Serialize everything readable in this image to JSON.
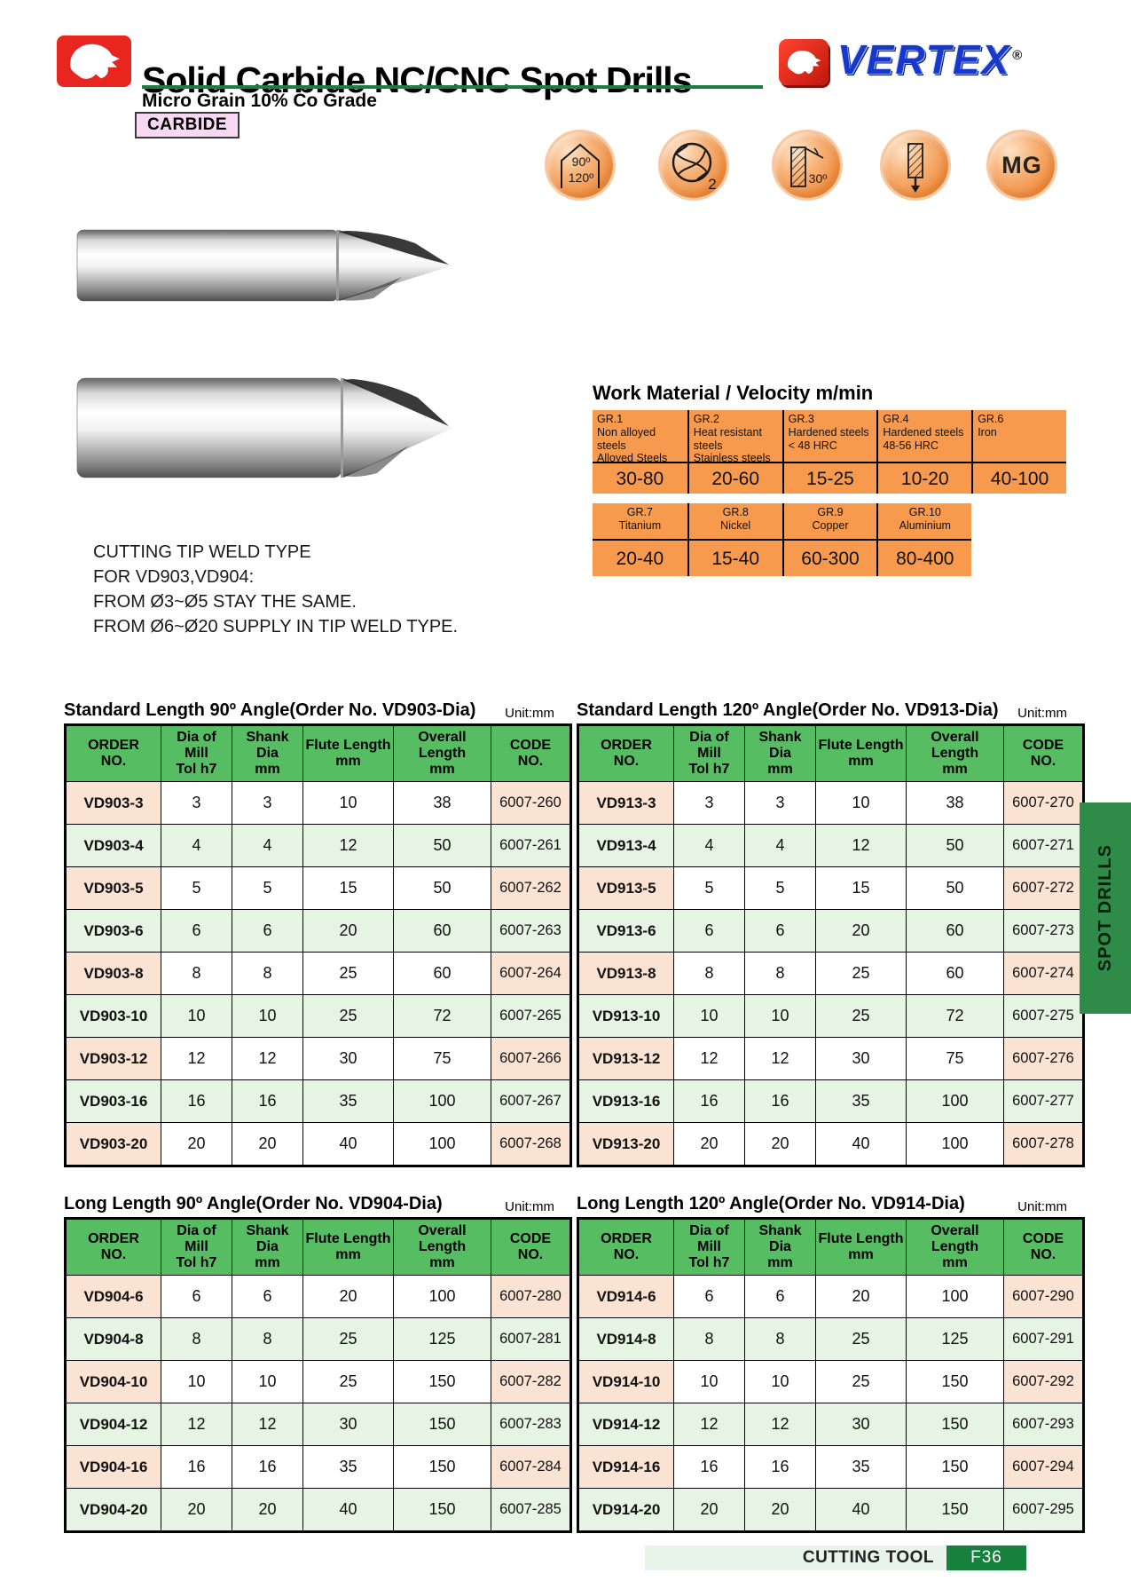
{
  "header": {
    "title": "Solid Carbide NC/CNC Spot Drills",
    "subtitle": "Micro Grain 10% Co Grade",
    "grade_badge": "CARBIDE",
    "brand": "VERTEX",
    "registered_mark": "®"
  },
  "feature_icons": {
    "point_angle": {
      "top": "90º",
      "bottom": "120º"
    },
    "flutes": {
      "count": "2"
    },
    "helix": {
      "angle": "30º"
    },
    "mg": {
      "label": "MG"
    }
  },
  "note_lines": [
    "CUTTING TIP WELD TYPE",
    "FOR VD903,VD904:",
    "FROM Ø3~Ø5 STAY THE SAME.",
    "FROM Ø6~Ø20 SUPPLY IN TIP WELD TYPE."
  ],
  "work_material": {
    "title": "Work Material / Velocity m/min",
    "groups": [
      {
        "cells": [
          {
            "code": "GR.1",
            "desc": "Non alloyed\nsteels\nAlloyed Steels",
            "value": "30-80"
          },
          {
            "code": "GR.2",
            "desc": "Heat resistant\nsteels\nStainless steels",
            "value": "20-60"
          },
          {
            "code": "GR.3",
            "desc": "Hardened steels\n< 48 HRC",
            "value": "15-25"
          },
          {
            "code": "GR.4",
            "desc": "Hardened steels\n48-56 HRC",
            "value": "10-20"
          },
          {
            "code": "GR.6",
            "desc": "Iron",
            "value": "40-100"
          }
        ]
      },
      {
        "cells": [
          {
            "code": "GR.7",
            "desc": "Titanium",
            "value": "20-40"
          },
          {
            "code": "GR.8",
            "desc": "Nickel",
            "value": "15-40"
          },
          {
            "code": "GR.9",
            "desc": "Copper",
            "value": "60-300"
          },
          {
            "code": "GR.10",
            "desc": "Aluminium",
            "value": "80-400"
          }
        ]
      }
    ]
  },
  "unit_label": "Unit:mm",
  "spec_headers": [
    "ORDER\nNO.",
    "Dia of\nMill\nTol h7",
    "Shank\nDia\nmm",
    "Flute Length\nmm",
    "Overall\nLength\nmm",
    "CODE\nNO."
  ],
  "tables": [
    {
      "title": "Standard Length 90º Angle(Order No. VD903-Dia)",
      "rows": [
        [
          "VD903-3",
          "3",
          "3",
          "10",
          "38",
          "6007-260"
        ],
        [
          "VD903-4",
          "4",
          "4",
          "12",
          "50",
          "6007-261"
        ],
        [
          "VD903-5",
          "5",
          "5",
          "15",
          "50",
          "6007-262"
        ],
        [
          "VD903-6",
          "6",
          "6",
          "20",
          "60",
          "6007-263"
        ],
        [
          "VD903-8",
          "8",
          "8",
          "25",
          "60",
          "6007-264"
        ],
        [
          "VD903-10",
          "10",
          "10",
          "25",
          "72",
          "6007-265"
        ],
        [
          "VD903-12",
          "12",
          "12",
          "30",
          "75",
          "6007-266"
        ],
        [
          "VD903-16",
          "16",
          "16",
          "35",
          "100",
          "6007-267"
        ],
        [
          "VD903-20",
          "20",
          "20",
          "40",
          "100",
          "6007-268"
        ]
      ]
    },
    {
      "title": "Standard Length 120º Angle(Order No. VD913-Dia)",
      "rows": [
        [
          "VD913-3",
          "3",
          "3",
          "10",
          "38",
          "6007-270"
        ],
        [
          "VD913-4",
          "4",
          "4",
          "12",
          "50",
          "6007-271"
        ],
        [
          "VD913-5",
          "5",
          "5",
          "15",
          "50",
          "6007-272"
        ],
        [
          "VD913-6",
          "6",
          "6",
          "20",
          "60",
          "6007-273"
        ],
        [
          "VD913-8",
          "8",
          "8",
          "25",
          "60",
          "6007-274"
        ],
        [
          "VD913-10",
          "10",
          "10",
          "25",
          "72",
          "6007-275"
        ],
        [
          "VD913-12",
          "12",
          "12",
          "30",
          "75",
          "6007-276"
        ],
        [
          "VD913-16",
          "16",
          "16",
          "35",
          "100",
          "6007-277"
        ],
        [
          "VD913-20",
          "20",
          "20",
          "40",
          "100",
          "6007-278"
        ]
      ]
    },
    {
      "title": "Long Length 90º Angle(Order No. VD904-Dia)",
      "rows": [
        [
          "VD904-6",
          "6",
          "6",
          "20",
          "100",
          "6007-280"
        ],
        [
          "VD904-8",
          "8",
          "8",
          "25",
          "125",
          "6007-281"
        ],
        [
          "VD904-10",
          "10",
          "10",
          "25",
          "150",
          "6007-282"
        ],
        [
          "VD904-12",
          "12",
          "12",
          "30",
          "150",
          "6007-283"
        ],
        [
          "VD904-16",
          "16",
          "16",
          "35",
          "150",
          "6007-284"
        ],
        [
          "VD904-20",
          "20",
          "20",
          "40",
          "150",
          "6007-285"
        ]
      ]
    },
    {
      "title": "Long Length 120º Angle(Order No. VD914-Dia)",
      "rows": [
        [
          "VD914-6",
          "6",
          "6",
          "20",
          "100",
          "6007-290"
        ],
        [
          "VD914-8",
          "8",
          "8",
          "25",
          "125",
          "6007-291"
        ],
        [
          "VD914-10",
          "10",
          "10",
          "25",
          "150",
          "6007-292"
        ],
        [
          "VD914-12",
          "12",
          "12",
          "30",
          "150",
          "6007-293"
        ],
        [
          "VD914-16",
          "16",
          "16",
          "35",
          "150",
          "6007-294"
        ],
        [
          "VD914-20",
          "20",
          "20",
          "40",
          "150",
          "6007-295"
        ]
      ]
    }
  ],
  "side_tab": "SPOT DRILLS",
  "footer": {
    "label": "CUTTING TOOL",
    "page_no": "F36"
  },
  "colors": {
    "accent_orange": "#F79A4D",
    "table_header_green": "#57BD63",
    "row_stripe_green": "#E6F4E3",
    "row_peach": "#FBE3D3",
    "side_tab_green": "#2E8B48",
    "footer_bar_green": "#E8F4EA",
    "footer_box_green": "#15813C",
    "brand_red": "#E8261F",
    "brand_blue": "#1638CC",
    "title_underline_green": "#1D7C3F"
  }
}
